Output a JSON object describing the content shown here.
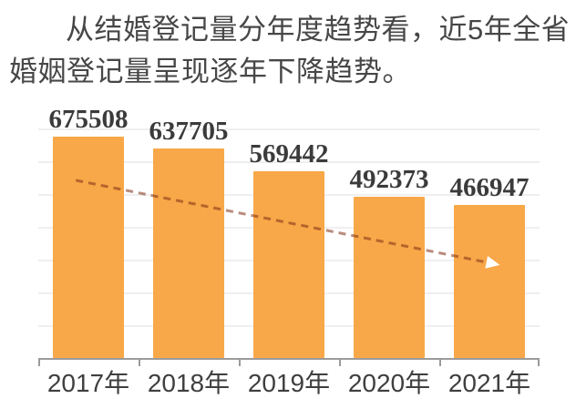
{
  "caption": {
    "line1": "从结婚登记量分年度趋势看，近5年全省",
    "line2": "婚姻登记量呈现逐年下降趋势。"
  },
  "chart_data": {
    "type": "bar",
    "categories": [
      "2017年",
      "2018年",
      "2019年",
      "2020年",
      "2021年"
    ],
    "values": [
      675508,
      637705,
      569442,
      492373,
      466947
    ],
    "title": "",
    "xlabel": "",
    "ylabel": "",
    "ylim": [
      0,
      700000
    ],
    "gridline_step": 100000,
    "grid": true,
    "legend": "none",
    "bar_color": "#F8A848",
    "value_label_color": "#3b3b3b",
    "axis_color": "#9b9b9b",
    "gridline_color": "#efefef",
    "trend_arrow": {
      "present": true,
      "direction": "down",
      "style": "dashed",
      "line_color": "rgba(125,45,20,0.55)",
      "arrowhead_color": "#ffffff"
    }
  },
  "colors": {
    "background": "#ffffff",
    "caption_text": "#474747",
    "tick_label_text": "#3f3f3f"
  }
}
